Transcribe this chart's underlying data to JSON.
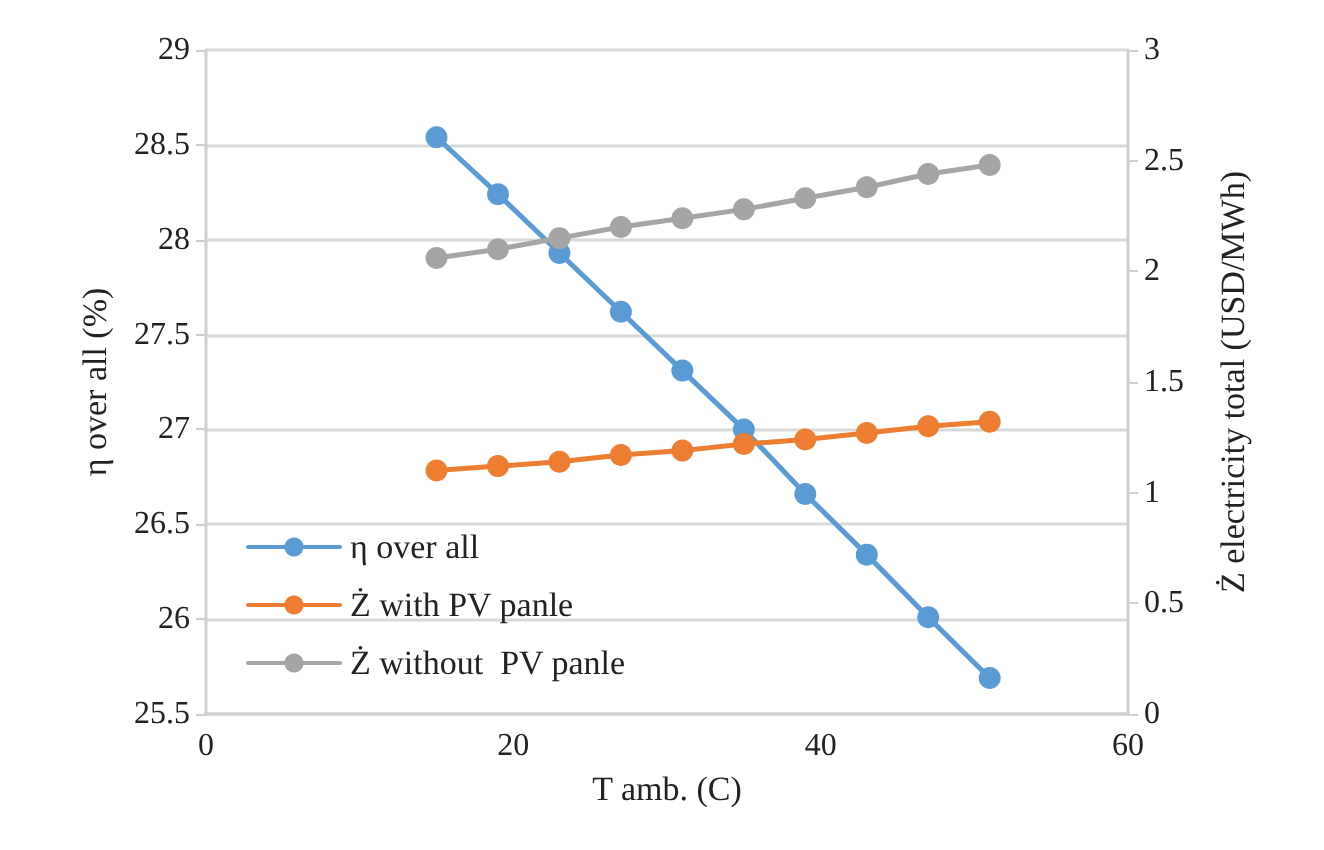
{
  "chart_data": {
    "type": "line",
    "xlabel": "T amb. (C)",
    "ylabel": "η over all (%)",
    "y2label": "Ż electricity total (USD/MWh)",
    "x": [
      15,
      19,
      23,
      27,
      31,
      35,
      39,
      43,
      47,
      51
    ],
    "series": [
      {
        "name": "η over all",
        "color": "#5b9bd5",
        "values": [
          28.54,
          28.24,
          27.93,
          27.62,
          27.31,
          27.0,
          26.66,
          26.34,
          26.01,
          25.69
        ]
      },
      {
        "name": "Ż with PV panle",
        "color": "#ed7d31",
        "axis": "y2",
        "values": [
          1.1,
          1.12,
          1.14,
          1.17,
          1.19,
          1.22,
          1.24,
          1.27,
          1.3,
          1.32
        ]
      },
      {
        "name": "Ż without  PV panle",
        "color": "#a5a5a5",
        "axis": "y2",
        "values": [
          2.06,
          2.1,
          2.15,
          2.2,
          2.24,
          2.28,
          2.33,
          2.38,
          2.44,
          2.48
        ]
      }
    ],
    "xlim": [
      0,
      60
    ],
    "xticks": [
      0,
      20,
      40,
      60
    ],
    "ylim": [
      25.5,
      29
    ],
    "yticks": [
      25.5,
      26,
      26.5,
      27,
      27.5,
      28,
      28.5,
      29
    ],
    "y2lim": [
      0,
      3
    ],
    "y2ticks": [
      0,
      0.5,
      1,
      1.5,
      2,
      2.5,
      3
    ],
    "grid": "y",
    "legend": "bottom left",
    "marker": "circle",
    "line_style": "solid"
  }
}
